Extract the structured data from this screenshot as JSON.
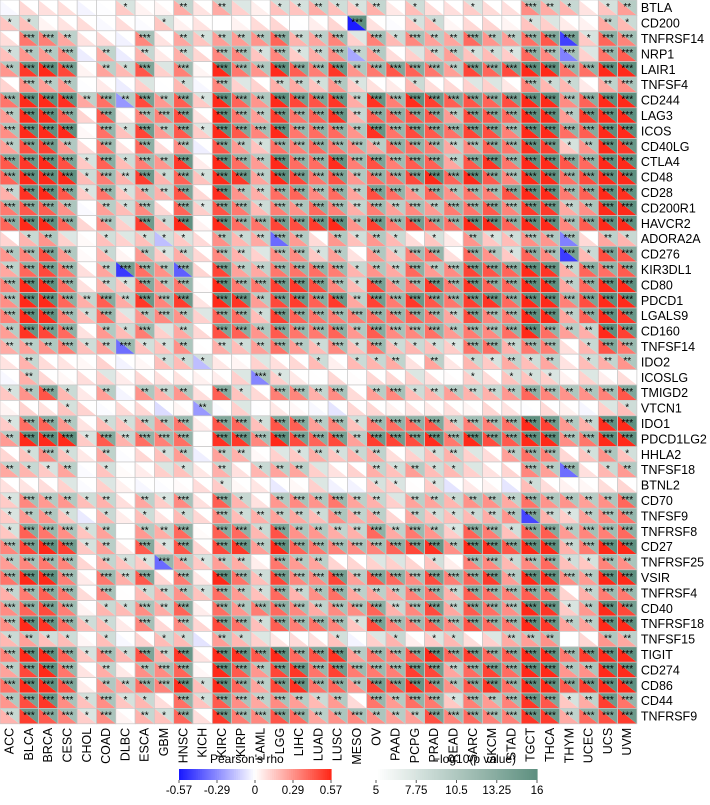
{
  "chart_data": {
    "type": "heatmap",
    "title": "",
    "xlabel": "",
    "ylabel": "",
    "cancers": [
      "ACC",
      "BLCA",
      "BRCA",
      "CESC",
      "CHOL",
      "COAD",
      "DLBC",
      "ESCA",
      "GBM",
      "HNSC",
      "KICH",
      "KIRC",
      "KIRP",
      "LAML",
      "LGG",
      "LIHC",
      "LUAD",
      "LUSC",
      "MESO",
      "OV",
      "PAAD",
      "PCPG",
      "PRAD",
      "READ",
      "SARC",
      "SKCM",
      "STAD",
      "TGCT",
      "THCA",
      "THYM",
      "UCEC",
      "UCS",
      "UVM"
    ],
    "genes": [
      "BTLA",
      "CD200",
      "TNFRSF14",
      "NRP1",
      "LAIR1",
      "TNFSF4",
      "CD244",
      "LAG3",
      "ICOS",
      "CD40LG",
      "CTLA4",
      "CD48",
      "CD28",
      "CD200R1",
      "HAVCR2",
      "ADORA2A",
      "CD276",
      "KIR3DL1",
      "CD80",
      "PDCD1",
      "LGALS9",
      "CD160",
      "TNFSF14",
      "IDO2",
      "ICOSLG",
      "TMIGD2",
      "VTCN1",
      "IDO1",
      "PDCD1LG2",
      "HHLA2",
      "TNFSF18",
      "BTNL2",
      "CD70",
      "TNFSF9",
      "TNFRSF8",
      "CD27",
      "TNFRSF25",
      "VSIR",
      "TNFRSF4",
      "CD40",
      "TNFRSF18",
      "TNFSF15",
      "TIGIT",
      "CD274",
      "CD86",
      "CD44",
      "TNFRSF9"
    ],
    "row_profile": [
      0.15,
      0.1,
      0.3,
      0.25,
      0.5,
      0.2,
      0.55,
      0.55,
      0.55,
      0.4,
      0.55,
      0.55,
      0.45,
      0.4,
      0.55,
      0.2,
      0.3,
      0.4,
      0.5,
      0.55,
      0.45,
      0.4,
      0.3,
      0.15,
      0.1,
      0.3,
      0.05,
      0.4,
      0.55,
      0.2,
      0.2,
      0.05,
      0.3,
      0.25,
      0.35,
      0.5,
      0.25,
      0.45,
      0.35,
      0.4,
      0.45,
      0.15,
      0.55,
      0.5,
      0.55,
      0.35,
      0.4
    ],
    "col_profile": [
      0.4,
      0.75,
      0.8,
      0.6,
      0.15,
      0.4,
      0.15,
      0.5,
      0.3,
      0.55,
      0.1,
      0.7,
      0.55,
      0.4,
      0.7,
      0.55,
      0.5,
      0.55,
      0.35,
      0.55,
      0.5,
      0.55,
      0.6,
      0.4,
      0.65,
      0.6,
      0.5,
      0.9,
      0.8,
      0.4,
      0.5,
      0.8,
      0.85
    ],
    "negative_cells": [
      [
        1,
        18
      ],
      [
        2,
        29
      ],
      [
        3,
        29
      ],
      [
        3,
        18
      ],
      [
        15,
        8
      ],
      [
        15,
        14
      ],
      [
        15,
        29
      ],
      [
        16,
        29
      ],
      [
        17,
        6
      ],
      [
        17,
        9
      ],
      [
        22,
        6
      ],
      [
        23,
        10
      ],
      [
        24,
        13
      ],
      [
        26,
        10
      ],
      [
        33,
        27
      ],
      [
        36,
        8
      ],
      [
        30,
        29
      ],
      [
        6,
        6
      ]
    ],
    "row_label_prefix": "",
    "scales": {
      "rho": {
        "title": "Pearson's rho",
        "ticks": [
          "-0.57",
          "-0.29",
          "0",
          "0.29",
          "0.57"
        ],
        "min": -0.57,
        "max": 0.57
      },
      "logp": {
        "title": "−log10(p value)",
        "ticks": [
          "5",
          "7.75",
          "10.5",
          "13.25",
          "16"
        ],
        "min": 5,
        "max": 16
      }
    },
    "colors": {
      "negative": "#1a1aff",
      "zero": "#ffffff",
      "positive": "#ff2a1a",
      "p_low": "#ffffff",
      "p_high": "#5f9080",
      "grid": "#c8c8c8",
      "star": "#000000"
    }
  }
}
